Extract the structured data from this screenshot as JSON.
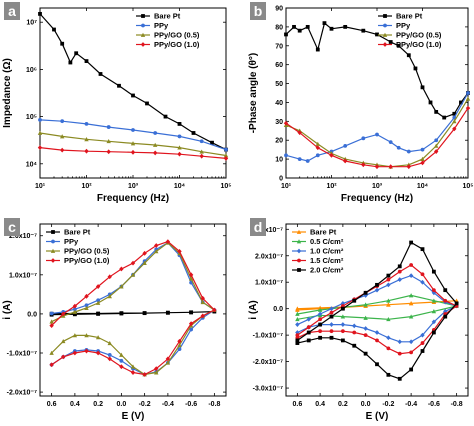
{
  "chart_data": [
    {
      "panel_label": "a",
      "type": "line",
      "xscale": "log",
      "yscale": "log",
      "xlabel": "Frequency (Hz)",
      "ylabel": "Impedance (Ω)",
      "xlim": [
        10,
        100000
      ],
      "ylim": [
        5000,
        20000000
      ],
      "xtick_labels": [
        "10¹",
        "10²",
        "10³",
        "10⁴",
        "10⁵"
      ],
      "ytick_labels": [
        "10⁴",
        "10⁵",
        "10⁶",
        "10⁷"
      ],
      "legend_position": "top-right",
      "series": [
        {
          "name": "Bare Pt",
          "color": "#000000",
          "marker": "square",
          "x": [
            10,
            20,
            30,
            45,
            60,
            100,
            200,
            500,
            1000,
            2000,
            5000,
            10000,
            20000,
            50000,
            100000
          ],
          "y": [
            15000000,
            7000000,
            3500000,
            1400000,
            2200000,
            1500000,
            800000,
            450000,
            280000,
            190000,
            100000,
            70000,
            45000,
            28000,
            20000
          ]
        },
        {
          "name": "PPy",
          "color": "#3a6fd6",
          "marker": "circle",
          "x": [
            10,
            30,
            100,
            300,
            1000,
            3000,
            10000,
            30000,
            100000
          ],
          "y": [
            85000,
            80000,
            70000,
            60000,
            52000,
            45000,
            38000,
            30000,
            20000
          ]
        },
        {
          "name": "PPy/GO (0.5)",
          "color": "#8b8a22",
          "marker": "triangle",
          "x": [
            10,
            30,
            100,
            300,
            1000,
            3000,
            10000,
            30000,
            100000
          ],
          "y": [
            45000,
            38000,
            33000,
            30000,
            27000,
            25000,
            22000,
            18000,
            15000
          ]
        },
        {
          "name": "PPy/GO (1.0)",
          "color": "#e0141e",
          "marker": "diamond",
          "x": [
            10,
            30,
            100,
            300,
            1000,
            3000,
            10000,
            30000,
            100000
          ],
          "y": [
            22000,
            19500,
            18500,
            18000,
            17500,
            17000,
            16000,
            14500,
            13000
          ]
        }
      ]
    },
    {
      "panel_label": "b",
      "type": "line",
      "xscale": "log",
      "xlabel": "Frequency (Hz)",
      "ylabel": "-Phase angle (θ°)",
      "xlim": [
        10,
        100000
      ],
      "ylim": [
        0,
        90
      ],
      "xtick_labels": [
        "10¹",
        "10²",
        "10³",
        "10⁴",
        "10⁵"
      ],
      "yticks": [
        0,
        10,
        20,
        30,
        40,
        50,
        60,
        70,
        80,
        90
      ],
      "legend_position": "top-right",
      "series": [
        {
          "name": "Bare Pt",
          "color": "#000000",
          "marker": "square",
          "x": [
            10,
            15,
            20,
            30,
            50,
            70,
            100,
            200,
            500,
            1000,
            2000,
            3000,
            5000,
            7000,
            10000,
            15000,
            20000,
            30000,
            50000,
            70000,
            100000
          ],
          "y": [
            76,
            80,
            78,
            80,
            68,
            82,
            79,
            80,
            78,
            76,
            72,
            70,
            65,
            58,
            48,
            40,
            35,
            32,
            34,
            40,
            45
          ]
        },
        {
          "name": "PPy",
          "color": "#3a6fd6",
          "marker": "circle",
          "x": [
            10,
            20,
            30,
            50,
            100,
            200,
            500,
            1000,
            2000,
            3000,
            5000,
            10000,
            20000,
            50000,
            100000
          ],
          "y": [
            12,
            10,
            9,
            12,
            14,
            17,
            21,
            23,
            19,
            16,
            14,
            15,
            20,
            32,
            45
          ]
        },
        {
          "name": "PPy/GO (0.5)",
          "color": "#8b8a22",
          "marker": "triangle",
          "x": [
            10,
            20,
            50,
            100,
            200,
            500,
            1000,
            2000,
            5000,
            10000,
            20000,
            50000,
            100000
          ],
          "y": [
            28,
            25,
            18,
            13,
            10,
            8,
            7,
            6,
            7,
            10,
            17,
            30,
            42
          ]
        },
        {
          "name": "PPy/GO (1.0)",
          "color": "#e0141e",
          "marker": "diamond",
          "x": [
            10,
            20,
            50,
            100,
            200,
            500,
            1000,
            2000,
            5000,
            10000,
            20000,
            50000,
            100000
          ],
          "y": [
            29,
            24,
            16,
            12,
            9,
            7,
            6,
            6,
            6,
            8,
            14,
            26,
            37
          ]
        }
      ]
    },
    {
      "panel_label": "c",
      "type": "line",
      "xlabel": "E (V)",
      "ylabel": "i (A)",
      "xlim": [
        0.7,
        -0.9
      ],
      "ylim": [
        -2.1e-07,
        2.3e-07
      ],
      "xticks": [
        0.6,
        0.4,
        0.2,
        0.0,
        -0.2,
        -0.4,
        -0.6,
        -0.8
      ],
      "xtick_labels": [
        "0.6",
        "0.4",
        "0.2",
        "0.0",
        "-0.2",
        "-0.4",
        "-0.6",
        "-0.8"
      ],
      "ytick_labels": [
        "-2.0x10⁻⁷",
        "-1.0x10⁻⁷",
        "0.0",
        "1.0x10⁻⁷",
        "2.0x10⁻⁷"
      ],
      "yticks": [
        -2e-07,
        -1e-07,
        0,
        1e-07,
        2e-07
      ],
      "legend_position": "top-left",
      "series": [
        {
          "name": "Bare Pt",
          "color": "#000000",
          "marker": "square",
          "x": [
            0.6,
            0.4,
            0.2,
            0.0,
            -0.2,
            -0.4,
            -0.6,
            -0.8,
            -0.6,
            -0.4,
            -0.2,
            0.0,
            0.2,
            0.4,
            0.6
          ],
          "y": [
            5e-10,
            1e-09,
            1e-09,
            2e-09,
            2e-09,
            3e-09,
            4e-09,
            6e-09,
            4e-09,
            3e-09,
            2e-09,
            1e-09,
            0.0,
            -1e-09,
            -2e-09
          ]
        },
        {
          "name": "PPy",
          "color": "#3a6fd6",
          "marker": "circle",
          "x": [
            0.6,
            0.5,
            0.4,
            0.3,
            0.2,
            0.1,
            0.0,
            -0.1,
            -0.2,
            -0.3,
            -0.4,
            -0.5,
            -0.6,
            -0.7,
            -0.8,
            -0.7,
            -0.6,
            -0.5,
            -0.4,
            -0.3,
            -0.2,
            -0.1,
            0.0,
            0.1,
            0.2,
            0.3,
            0.4,
            0.5,
            0.6
          ],
          "y": [
            1e-09,
            5e-09,
            1.2e-08,
            2.2e-08,
            3.5e-08,
            5e-08,
            7e-08,
            1e-07,
            1.35e-07,
            1.65e-07,
            1.82e-07,
            1.5e-07,
            8e-08,
            3e-08,
            1e-08,
            -1e-08,
            -4e-08,
            -9e-08,
            -1.25e-07,
            -1.48e-07,
            -1.55e-07,
            -1.4e-07,
            -1.2e-07,
            -1.05e-07,
            -9.5e-08,
            -9.2e-08,
            -9.5e-08,
            -1.1e-07,
            -1.3e-07
          ]
        },
        {
          "name": "PPy/GO (0.5)",
          "color": "#8b8a22",
          "marker": "triangle",
          "x": [
            0.6,
            0.5,
            0.4,
            0.3,
            0.2,
            0.1,
            0.0,
            -0.1,
            -0.2,
            -0.3,
            -0.4,
            -0.5,
            -0.6,
            -0.7,
            -0.8,
            -0.7,
            -0.6,
            -0.5,
            -0.4,
            -0.3,
            -0.2,
            -0.1,
            0.0,
            0.1,
            0.2,
            0.3,
            0.4,
            0.5,
            0.6
          ],
          "y": [
            -2e-08,
            -5e-09,
            5e-09,
            1.5e-08,
            2.8e-08,
            4.5e-08,
            7e-08,
            1e-07,
            1.3e-07,
            1.6e-07,
            1.82e-07,
            1.55e-07,
            9e-08,
            3e-08,
            1e-08,
            -5e-09,
            -3e-08,
            -8e-08,
            -1.25e-07,
            -1.5e-07,
            -1.55e-07,
            -1.35e-07,
            -1.05e-07,
            -7.5e-08,
            -6e-08,
            -5.5e-08,
            -5.5e-08,
            -7e-08,
            -1e-07
          ]
        },
        {
          "name": "PPy/GO (1.0)",
          "color": "#e0141e",
          "marker": "diamond",
          "x": [
            0.6,
            0.5,
            0.4,
            0.3,
            0.2,
            0.1,
            0.0,
            -0.1,
            -0.2,
            -0.3,
            -0.4,
            -0.5,
            -0.6,
            -0.7,
            -0.8,
            -0.7,
            -0.6,
            -0.5,
            -0.4,
            -0.3,
            -0.2,
            -0.1,
            0.0,
            0.1,
            0.2,
            0.3,
            0.4,
            0.5,
            0.6
          ],
          "y": [
            -3e-08,
            0.0,
            2e-08,
            4.5e-08,
            7e-08,
            9.5e-08,
            1.15e-07,
            1.3e-07,
            1.55e-07,
            1.75e-07,
            1.85e-07,
            1.6e-07,
            1e-07,
            4e-08,
            1e-08,
            -5e-09,
            -2.5e-08,
            -7e-08,
            -1.15e-07,
            -1.4e-07,
            -1.55e-07,
            -1.5e-07,
            -1.35e-07,
            -1.15e-07,
            -1e-07,
            -9.5e-08,
            -1e-07,
            -1.1e-07,
            -1.3e-07
          ]
        }
      ]
    },
    {
      "panel_label": "d",
      "type": "line",
      "xlabel": "E (V)",
      "ylabel": "i (A)",
      "xlim": [
        0.7,
        -0.9
      ],
      "ylim": [
        -3.3e-07,
        3.2e-07
      ],
      "xticks": [
        0.6,
        0.4,
        0.2,
        0.0,
        -0.2,
        -0.4,
        -0.6,
        -0.8
      ],
      "xtick_labels": [
        "0.6",
        "0.4",
        "0.2",
        "0.0",
        "-0.2",
        "-0.4",
        "-0.6",
        "-0.8"
      ],
      "yticks": [
        -3e-07,
        -2e-07,
        -1e-07,
        0,
        1e-07,
        2e-07,
        3e-07
      ],
      "ytick_labels": [
        "-3.0x10⁻⁷",
        "-2.0x10⁻⁷",
        "-1.0x10⁻⁷",
        "0.0",
        "1.0x10⁻⁷",
        "2.0x10⁻⁷",
        "3.0x10⁻⁷"
      ],
      "legend_position": "top-left",
      "series": [
        {
          "name": "Bare Pt",
          "color": "#ff8c00",
          "marker": "triangle",
          "x": [
            0.6,
            0.4,
            0.2,
            0.0,
            -0.2,
            -0.4,
            -0.6,
            -0.8,
            -0.6,
            -0.4,
            -0.2,
            0.0,
            0.2,
            0.4,
            0.6
          ],
          "y": [
            0.0,
            3e-09,
            6e-09,
            1e-08,
            1.5e-08,
            2e-08,
            2.5e-08,
            3e-08,
            2.5e-08,
            2e-08,
            1.5e-08,
            1e-08,
            5e-09,
            0.0,
            -5e-09
          ]
        },
        {
          "name": "0.5 C/cm²",
          "color": "#3cb44b",
          "marker": "triangle",
          "x": [
            0.6,
            0.4,
            0.2,
            0.0,
            -0.2,
            -0.4,
            -0.6,
            -0.8,
            -0.6,
            -0.4,
            -0.2,
            0.0,
            0.2,
            0.4,
            0.6
          ],
          "y": [
            -2e-08,
            -5e-09,
            5e-09,
            1.5e-08,
            3e-08,
            5e-08,
            3e-08,
            1e-08,
            -1e-08,
            -3e-08,
            -4e-08,
            -3.5e-08,
            -3e-08,
            -2.5e-08,
            -4e-08
          ]
        },
        {
          "name": "1.0 C/cm²",
          "color": "#3a6fd6",
          "marker": "diamond",
          "x": [
            0.6,
            0.5,
            0.4,
            0.3,
            0.2,
            0.1,
            0.0,
            -0.1,
            -0.2,
            -0.3,
            -0.4,
            -0.5,
            -0.6,
            -0.7,
            -0.8,
            -0.7,
            -0.6,
            -0.5,
            -0.4,
            -0.3,
            -0.2,
            -0.1,
            0.0,
            0.1,
            0.2,
            0.3,
            0.4,
            0.5,
            0.6
          ],
          "y": [
            -6e-08,
            -4e-08,
            -2e-08,
            0.0,
            2e-08,
            3.5e-08,
            5e-08,
            7e-08,
            9e-08,
            1.1e-07,
            1.25e-07,
            1e-07,
            6e-08,
            2.5e-08,
            1e-08,
            -1e-08,
            -5e-08,
            -1e-07,
            -1.25e-07,
            -1.25e-07,
            -1.1e-07,
            -9e-08,
            -7.5e-08,
            -6.5e-08,
            -6e-08,
            -6e-08,
            -6e-08,
            -7e-08,
            -9e-08
          ]
        },
        {
          "name": "1.5 C/cm²",
          "color": "#e0141e",
          "marker": "circle",
          "x": [
            0.6,
            0.5,
            0.4,
            0.3,
            0.2,
            0.1,
            0.0,
            -0.1,
            -0.2,
            -0.3,
            -0.4,
            -0.5,
            -0.6,
            -0.7,
            -0.8,
            -0.7,
            -0.6,
            -0.5,
            -0.4,
            -0.3,
            -0.2,
            -0.1,
            0.0,
            0.1,
            0.2,
            0.3,
            0.4,
            0.5,
            0.6
          ],
          "y": [
            -1e-07,
            -7e-08,
            -4e-08,
            -1.5e-08,
            1e-08,
            3.5e-08,
            6e-08,
            8.5e-08,
            1.1e-07,
            1.4e-07,
            1.65e-07,
            1.3e-07,
            7e-08,
            3e-08,
            1e-08,
            -2e-08,
            -8e-08,
            -1.3e-07,
            -1.65e-07,
            -1.7e-07,
            -1.5e-07,
            -1.2e-07,
            -1e-07,
            -9e-08,
            -8.5e-08,
            -8.5e-08,
            -8.5e-08,
            -9e-08,
            -1.1e-07
          ]
        },
        {
          "name": "2.0 C/cm²",
          "color": "#000000",
          "marker": "square",
          "x": [
            0.6,
            0.5,
            0.4,
            0.3,
            0.2,
            0.1,
            0.0,
            -0.1,
            -0.2,
            -0.3,
            -0.4,
            -0.5,
            -0.6,
            -0.7,
            -0.8,
            -0.7,
            -0.6,
            -0.5,
            -0.4,
            -0.3,
            -0.2,
            -0.1,
            0.0,
            0.1,
            0.2,
            0.3,
            0.4,
            0.5,
            0.6
          ],
          "y": [
            -1.2e-07,
            -9e-08,
            -6e-08,
            -3e-08,
            0.0,
            3e-08,
            6e-08,
            9e-08,
            1.25e-07,
            1.6e-07,
            2.5e-07,
            2.25e-07,
            1.4e-07,
            7e-08,
            2e-08,
            -3e-08,
            -9e-08,
            -1.6e-07,
            -2.3e-07,
            -2.65e-07,
            -2.5e-07,
            -2.1e-07,
            -1.7e-07,
            -1.4e-07,
            -1.2e-07,
            -1.1e-07,
            -1.1e-07,
            -1.2e-07,
            -1.3e-07
          ]
        }
      ]
    }
  ]
}
